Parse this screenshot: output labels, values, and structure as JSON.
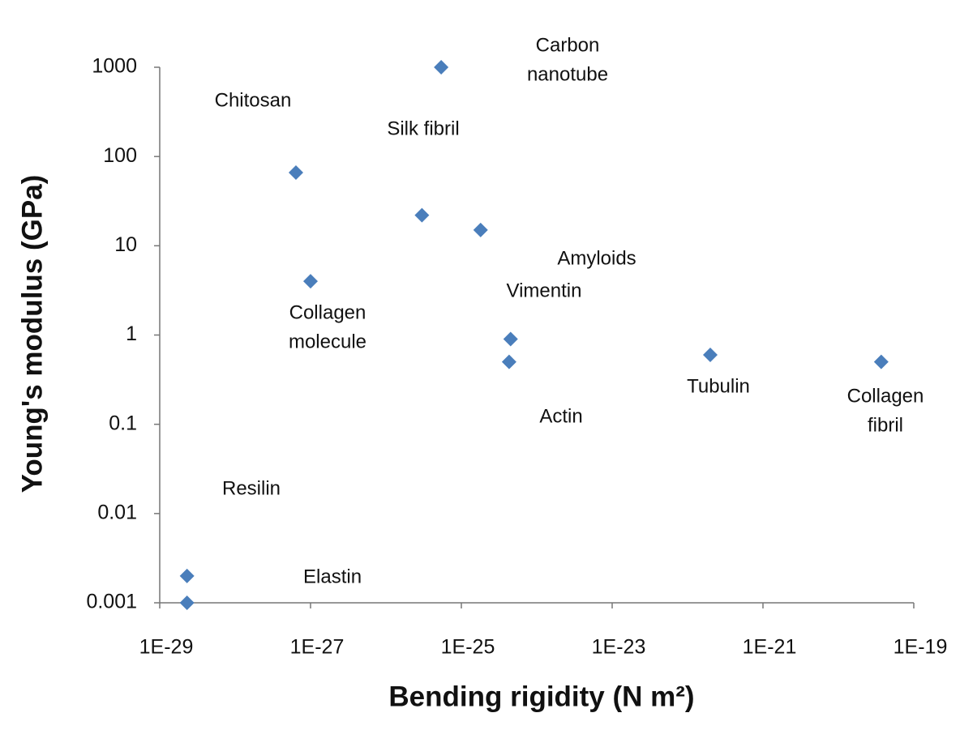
{
  "chart_data": {
    "type": "scatter",
    "x_label": "Bending rigidity (N m²)",
    "y_label": "Young's modulus (GPa)",
    "log_x": true,
    "log_y": true,
    "grid": false,
    "xlim": [
      1e-29,
      1e-19
    ],
    "ylim": [
      0.001,
      1000
    ],
    "xticks": [
      {
        "value": 1e-29,
        "label": "1E-29"
      },
      {
        "value": 1e-27,
        "label": "1E-27"
      },
      {
        "value": 1e-25,
        "label": "1E-25"
      },
      {
        "value": 1e-23,
        "label": "1E-23"
      },
      {
        "value": 1e-21,
        "label": "1E-21"
      },
      {
        "value": 1e-19,
        "label": "1E-19"
      }
    ],
    "yticks": [
      0.001,
      0.01,
      0.1,
      1,
      10,
      100,
      1000
    ],
    "series": [
      {
        "color": "#4a7ebb",
        "x": [
          2.3e-29,
          2.3e-29,
          6.4e-28,
          1e-27,
          3e-26,
          5.4e-26,
          1.8e-25,
          4.5e-25,
          4.3e-25,
          2e-22,
          3.7e-20
        ],
        "values": [
          0.001,
          0.002,
          66,
          4,
          22,
          1000,
          15,
          0.9,
          0.5,
          0.6,
          0.5
        ],
        "labels": [
          [
            "Elastin"
          ],
          [
            "Resilin"
          ],
          [
            "Chitosan"
          ],
          [
            "Collagen",
            "molecule"
          ],
          [
            "Silk fibril"
          ],
          [
            "Carbon",
            "nanotube"
          ],
          [
            "Amyloids"
          ],
          [
            "Vimentin"
          ],
          [
            "Actin"
          ],
          [
            "Tubulin"
          ],
          [
            "Collagen",
            "fibril"
          ]
        ]
      }
    ]
  }
}
